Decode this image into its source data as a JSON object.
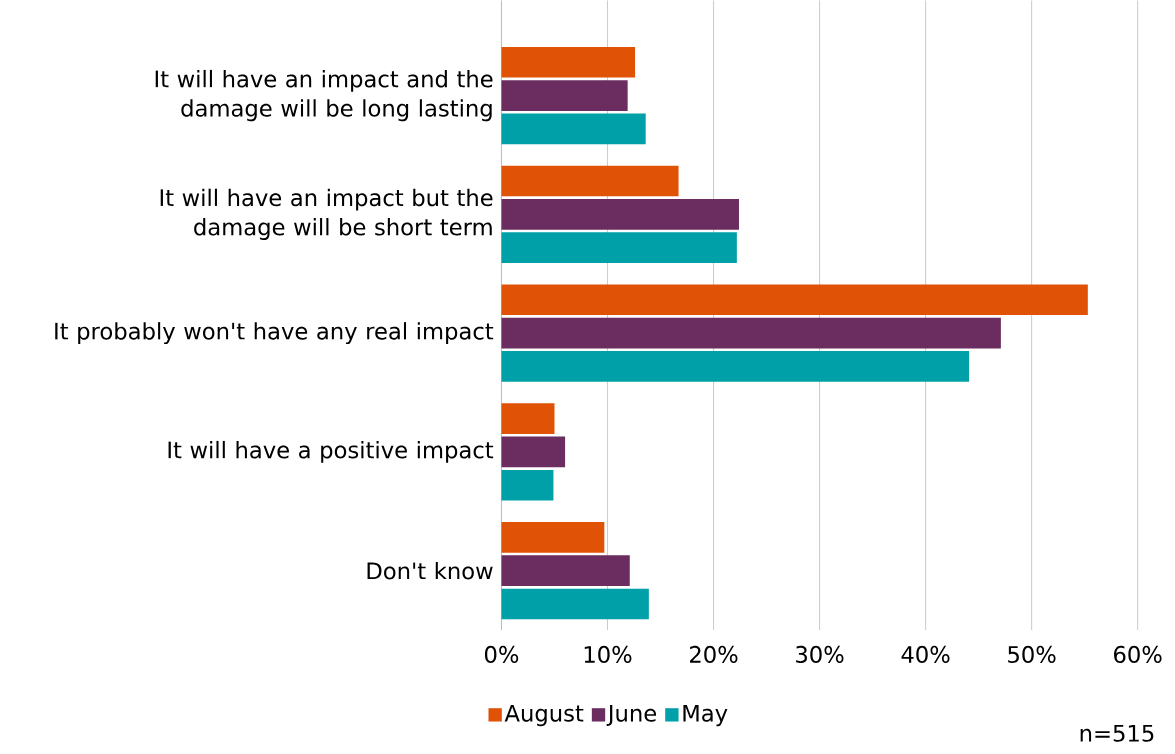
{
  "chart_data": {
    "type": "bar",
    "orientation": "horizontal",
    "categories": [
      "It will have an impact and the damage will be long lasting",
      "It will have an impact but the damage will be short term",
      "It probably won't have any real impact",
      "It will have a positive impact",
      "Don't know"
    ],
    "series": [
      {
        "name": "August",
        "color": "#e05206",
        "values": [
          12.6,
          16.7,
          55.3,
          5.0,
          9.7
        ]
      },
      {
        "name": "June",
        "color": "#6b2c5f",
        "values": [
          11.9,
          22.4,
          47.1,
          6.0,
          12.1
        ]
      },
      {
        "name": "May",
        "color": "#00a0a8",
        "values": [
          13.6,
          22.2,
          44.1,
          4.9,
          13.9
        ]
      }
    ],
    "xlim": [
      0,
      60
    ],
    "xticks": [
      {
        "value": 0,
        "label": "0%"
      },
      {
        "value": 10,
        "label": "10%"
      },
      {
        "value": 20,
        "label": "20%"
      },
      {
        "value": 30,
        "label": "30%"
      },
      {
        "value": 40,
        "label": "40%"
      },
      {
        "value": 50,
        "label": "50%"
      },
      {
        "value": 60,
        "label": "60%"
      }
    ],
    "grid": "x",
    "legend": "bottom",
    "annotations": [
      "n=515"
    ]
  }
}
